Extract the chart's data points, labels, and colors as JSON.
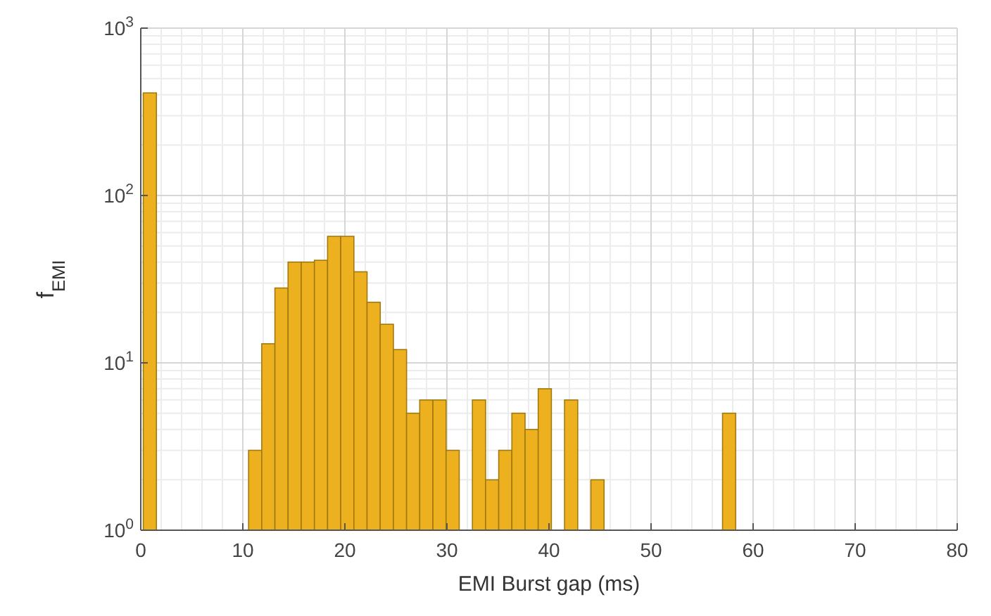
{
  "chart_data": {
    "type": "histogram",
    "xlabel": "EMI Burst gap (ms)",
    "ylabel": "f$_{EMI}$",
    "bins": [
      0.2,
      1.49,
      2.78,
      4.07,
      5.36,
      6.65,
      7.94,
      9.23,
      10.52,
      11.81,
      13.1,
      14.39,
      15.68,
      16.97,
      18.26,
      19.55,
      20.84,
      22.13,
      23.42,
      24.71,
      26,
      27.29,
      28.58,
      29.87,
      31.16,
      32.45,
      33.74,
      35.03,
      36.32,
      37.61,
      38.9,
      40.19,
      41.48,
      42.77,
      44.06,
      45.35,
      46.64,
      47.93,
      49.22,
      50.51,
      51.8,
      53.09,
      54.38,
      55.67,
      56.96,
      58.25
    ],
    "values": [
      410,
      null,
      null,
      null,
      null,
      null,
      null,
      null,
      3,
      13,
      28,
      40,
      40,
      41,
      57,
      57,
      35,
      23,
      17,
      12,
      5,
      6,
      6,
      3,
      null,
      6,
      2,
      3,
      5,
      4,
      7,
      null,
      6,
      null,
      2,
      null,
      null,
      null,
      null,
      null,
      null,
      null,
      null,
      null,
      5
    ],
    "color": "#edb120",
    "log": "y",
    "grid": true,
    "xlim": [
      0,
      80
    ],
    "xticks": [
      0,
      10,
      20,
      30,
      40,
      50,
      60,
      70,
      80
    ],
    "ylim": [
      1,
      1000
    ],
    "yticks": [
      {
        "value": 1,
        "label": "10$^{0}$"
      },
      {
        "value": 10,
        "label": "10$^{1}$"
      },
      {
        "value": 100,
        "label": "10$^{2}$"
      },
      {
        "value": 1000,
        "label": "10$^{3}$"
      }
    ]
  }
}
